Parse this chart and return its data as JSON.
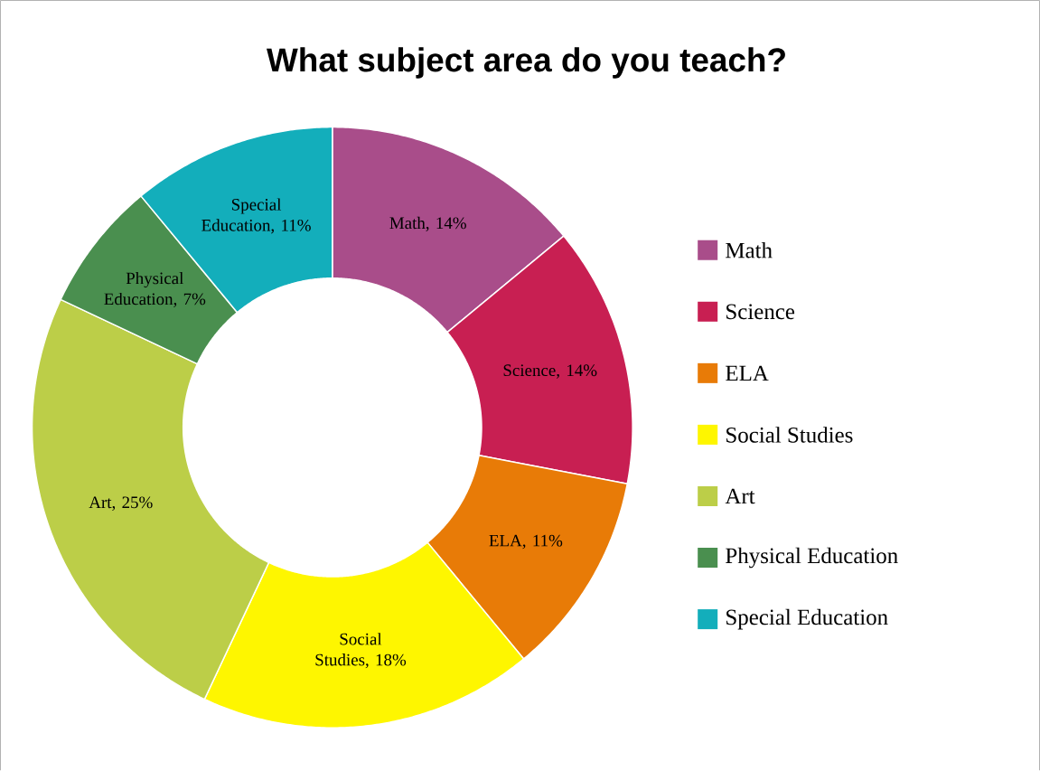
{
  "chart_data": {
    "type": "donut",
    "title": "What subject area do you teach?",
    "categories": [
      "Math",
      "Science",
      "ELA",
      "Social Studies",
      "Art",
      "Physical Education",
      "Special Education"
    ],
    "values": [
      14,
      14,
      11,
      18,
      25,
      7,
      11
    ],
    "colors": [
      "#a94d8a",
      "#c81f52",
      "#e87b07",
      "#fef600",
      "#bcce48",
      "#4a8f4f",
      "#13aebb"
    ],
    "value_labels": [
      "Math, 14%",
      "Science, 14%",
      "ELA, 11%",
      "Social Studies, 18%",
      "Art, 25%",
      "Physical Education, 7%",
      "Special Education, 11%"
    ],
    "legend": "right"
  }
}
